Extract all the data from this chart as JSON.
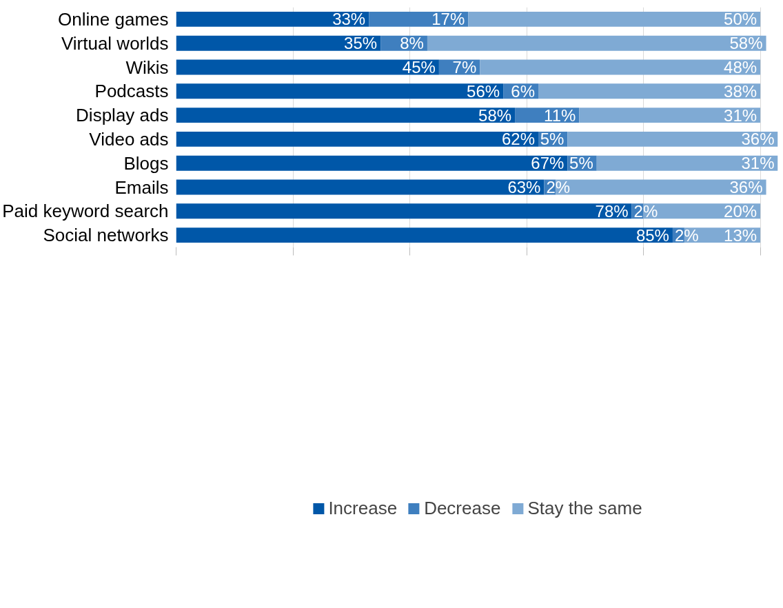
{
  "chart_data": {
    "type": "bar",
    "orientation": "horizontal",
    "stacked": true,
    "categories": [
      "Online games",
      "Virtual worlds",
      "Wikis",
      "Podcasts",
      "Display ads",
      "Video ads",
      "Blogs",
      "Emails",
      "Paid keyword search",
      "Social networks"
    ],
    "series": [
      {
        "name": "Increase",
        "color": "#0057a8",
        "values": [
          33,
          35,
          45,
          56,
          58,
          62,
          67,
          63,
          78,
          85
        ],
        "value_labels": [
          "33%",
          "35%",
          "45%",
          "56%",
          "58%",
          "62%",
          "67%",
          "63%",
          "78%",
          "85%"
        ]
      },
      {
        "name": "Decrease",
        "color": "#3f7fbf",
        "values": [
          17,
          8,
          7,
          6,
          11,
          5,
          5,
          2,
          2,
          2
        ],
        "value_labels": [
          "17%",
          "8%",
          "7%",
          "6%",
          "11%",
          "5%",
          "5%",
          "2%",
          "2%",
          "2%"
        ]
      },
      {
        "name": "Stay the same",
        "color": "#7faad4",
        "values": [
          50,
          58,
          48,
          38,
          31,
          36,
          31,
          36,
          20,
          13
        ],
        "value_labels": [
          "50%",
          "58%",
          "48%",
          "38%",
          "31%",
          "36%",
          "31%",
          "36%",
          "20%",
          "13%"
        ]
      }
    ],
    "tick_labels": "y",
    "grid": "x",
    "legend": "bottom"
  }
}
